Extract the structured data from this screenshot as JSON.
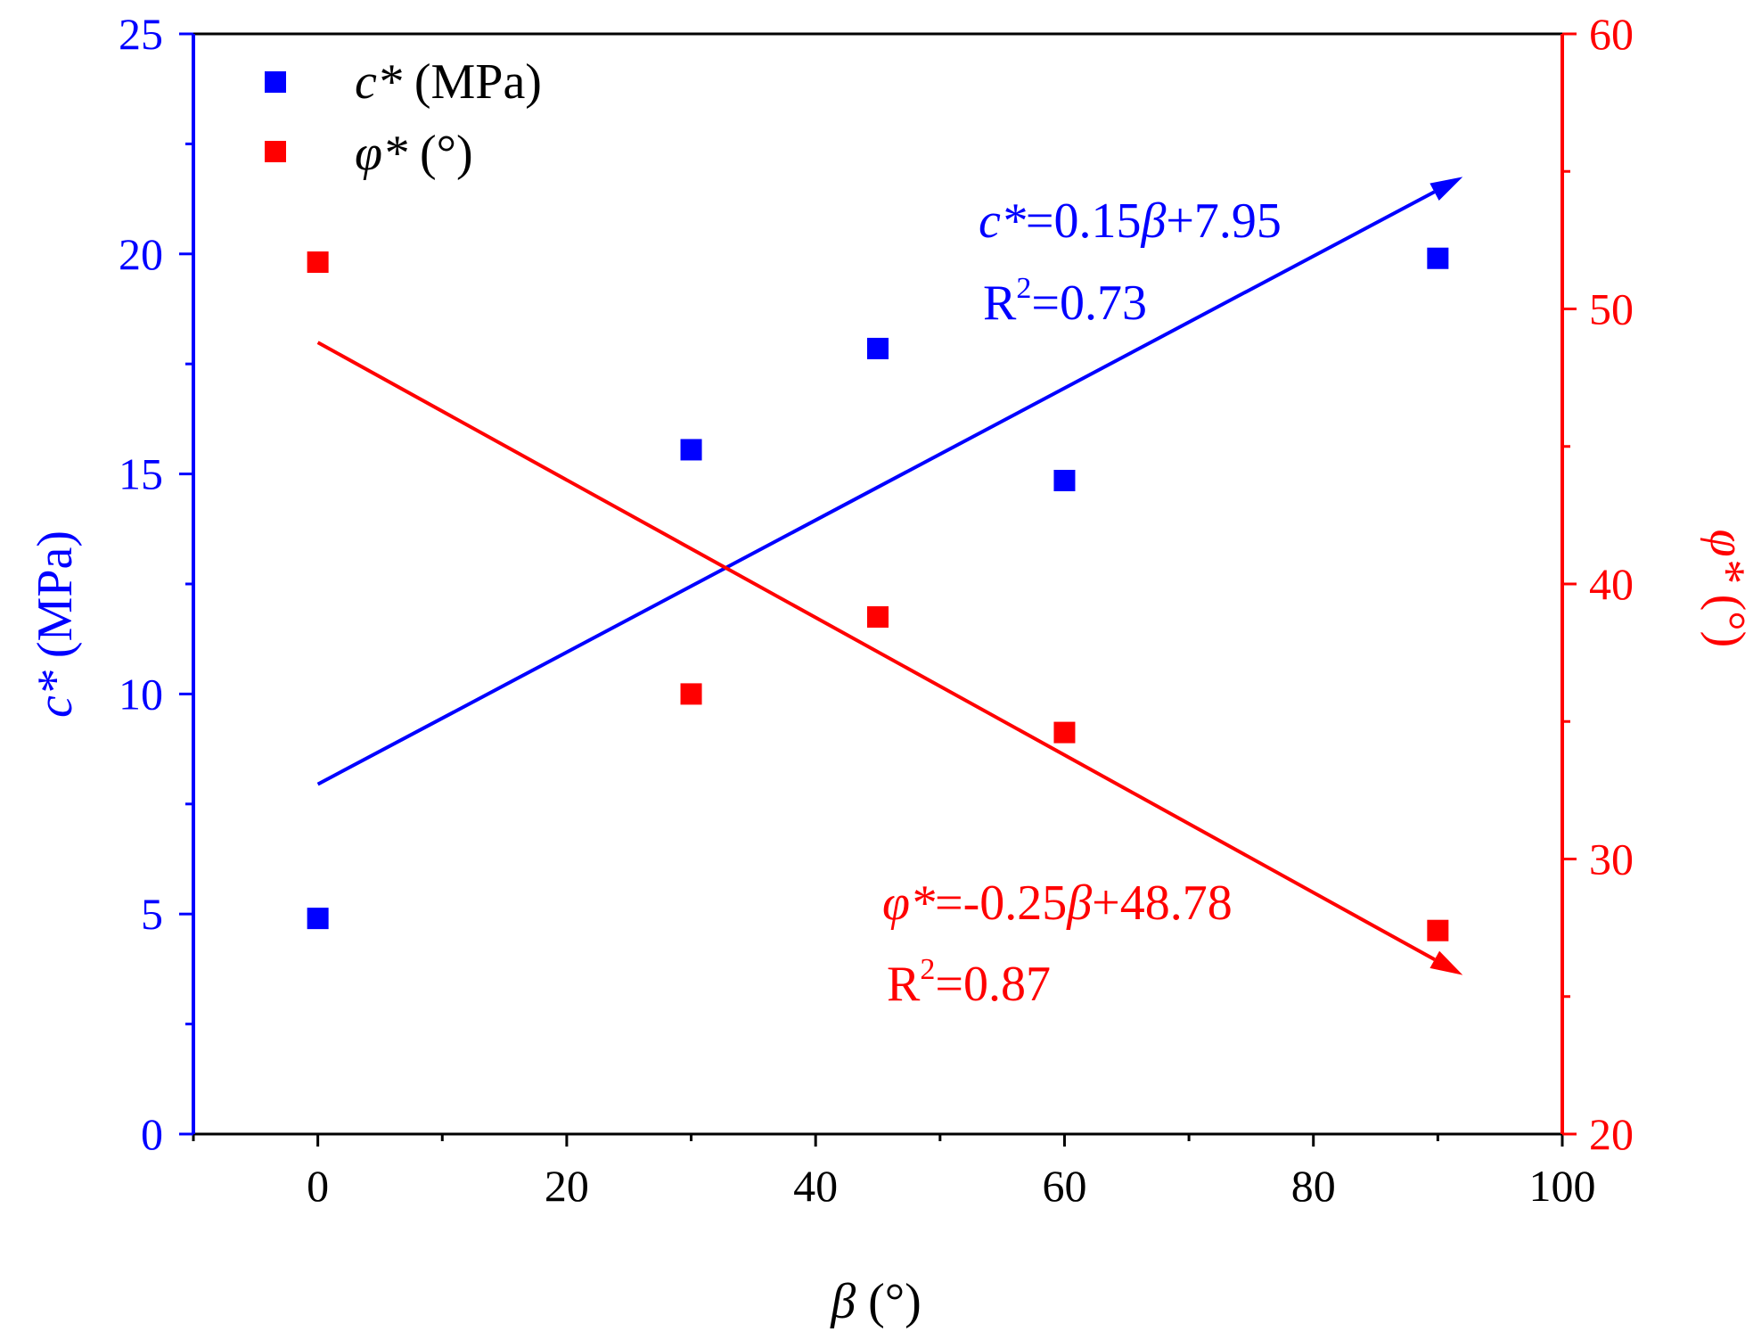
{
  "chart_data": {
    "type": "scatter",
    "x": [
      0,
      30,
      45,
      60,
      90
    ],
    "xlabel": {
      "symbol": "β",
      "unit": " (°)"
    },
    "xlim": [
      -10,
      100
    ],
    "xticks": [
      "0",
      "20",
      "40",
      "60",
      "80",
      "100"
    ],
    "xtick_values": [
      0,
      20,
      40,
      60,
      80,
      100
    ],
    "xminor_values": [
      -10,
      10,
      30,
      50,
      70,
      90
    ],
    "y_left": {
      "label": {
        "symbol": "c*",
        "unit": " (MPa)"
      },
      "lim": [
        0,
        25
      ],
      "ticks": [
        "0",
        "5",
        "10",
        "15",
        "20",
        "25"
      ],
      "tick_values": [
        0,
        5,
        10,
        15,
        20,
        25
      ],
      "minor_values": [
        2.5,
        7.5,
        12.5,
        17.5,
        22.5
      ],
      "color": "#0000ff"
    },
    "y_right": {
      "label": {
        "symbol": "φ*",
        "unit": " (°)"
      },
      "lim": [
        20,
        60
      ],
      "ticks": [
        "20",
        "30",
        "40",
        "50",
        "60"
      ],
      "tick_values": [
        20,
        30,
        40,
        50,
        60
      ],
      "minor_values": [
        25,
        35,
        45,
        55
      ],
      "color": "#ff0000"
    },
    "series": [
      {
        "name": "c* (MPa)",
        "legend_symbol": "c*",
        "legend_unit": " (MPa)",
        "axis": "left",
        "color": "#0000ff",
        "values": [
          4.9,
          15.55,
          17.85,
          14.85,
          19.9
        ],
        "fit": {
          "slope": 0.15,
          "intercept": 7.95,
          "x_range": [
            0,
            92
          ],
          "equation_sym": "c*",
          "equation_mid": "=0.15",
          "equation_var": "β",
          "equation_end": "+7.95",
          "r2_prefix": "R",
          "r2_exp": "2",
          "r2_value": "=0.73"
        }
      },
      {
        "name": "φ* (°)",
        "legend_symbol": "φ*",
        "legend_unit": " (°)",
        "axis": "right",
        "color": "#ff0000",
        "values": [
          51.7,
          36.0,
          38.8,
          34.6,
          27.4
        ],
        "fit": {
          "slope": -0.25,
          "intercept": 48.78,
          "x_range": [
            0,
            92
          ],
          "equation_sym": "φ*",
          "equation_mid": "=-0.25",
          "equation_var": "β",
          "equation_end": "+48.78",
          "r2_prefix": "R",
          "r2_exp": "2",
          "r2_value": "=0.87"
        }
      }
    ],
    "legend_position": "top-left"
  }
}
